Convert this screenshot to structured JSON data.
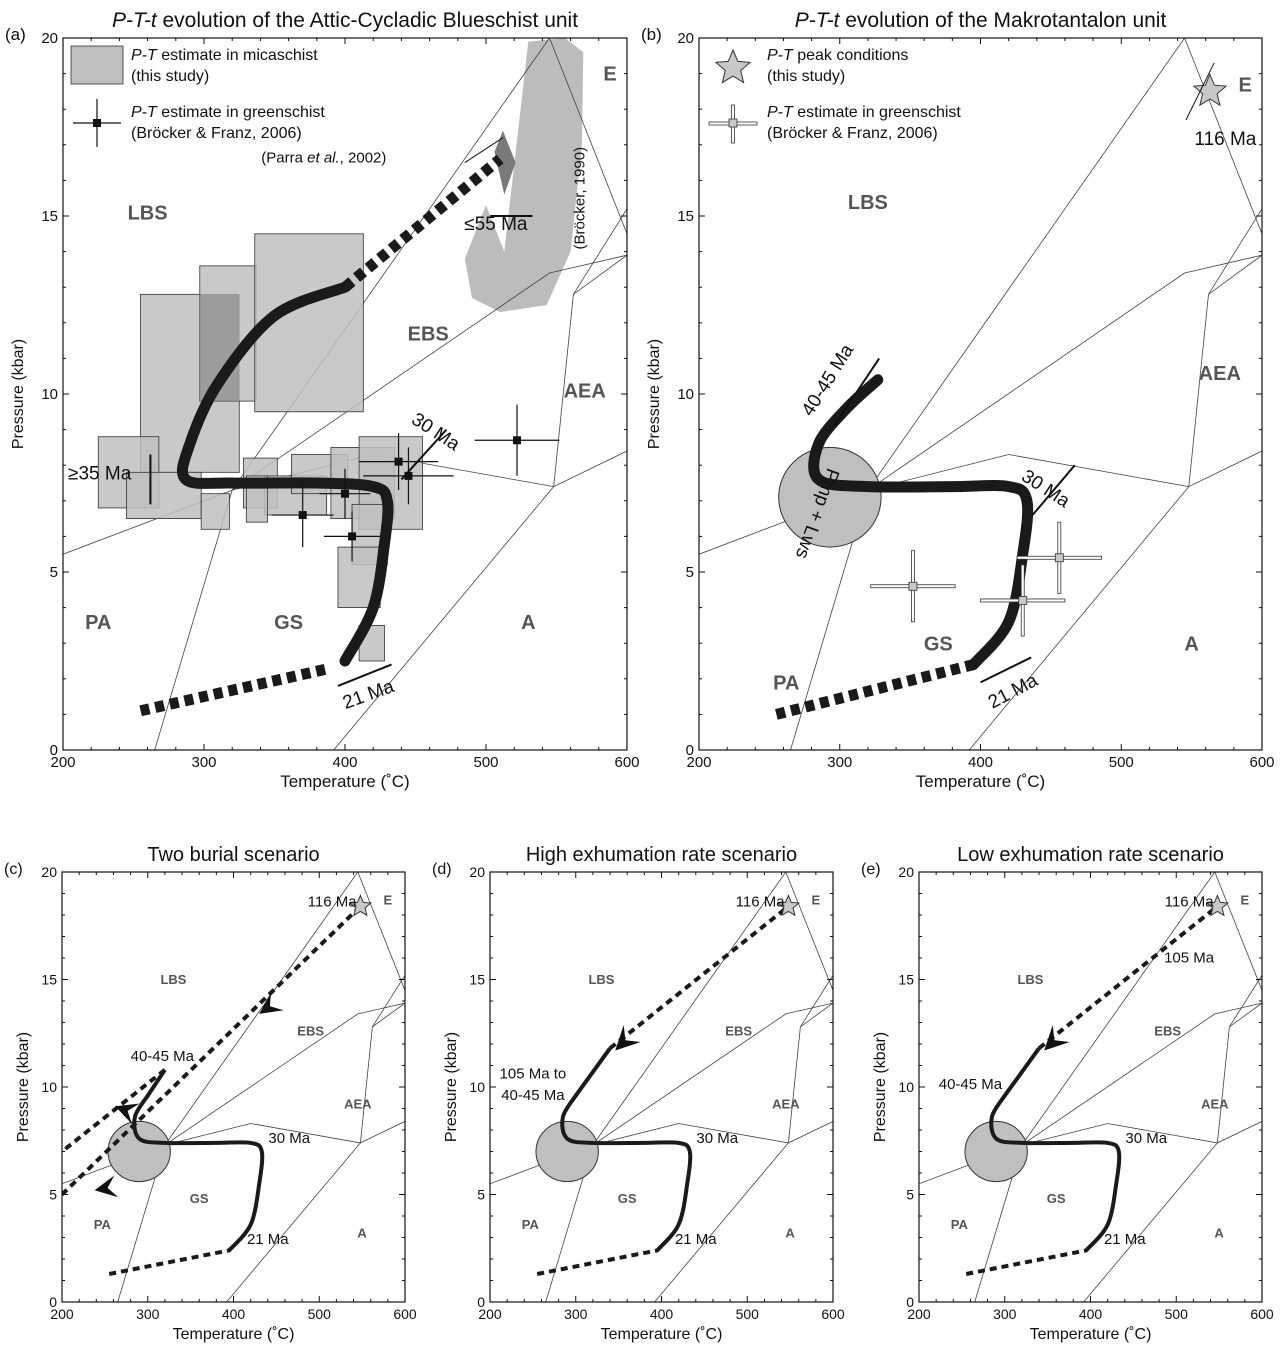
{
  "chart_data": [
    {
      "panel": "(a)",
      "type": "line",
      "title": "P-T-t evolution of the Attic-Cycladic Blueschist unit",
      "xlabel": "Temperature (˚C)",
      "ylabel": "Pressure (kbar)",
      "xlim": [
        200,
        600
      ],
      "ylim": [
        0,
        20
      ],
      "xticks": [
        "200",
        "300",
        "400",
        "500",
        "600"
      ],
      "yticks": [
        "0",
        "5",
        "10",
        "15",
        "20"
      ],
      "legend": [
        {
          "italic": "P-T",
          "text": " estimate in micaschist",
          "line2": "(this study)",
          "symbol": "grey-box"
        },
        {
          "italic": "P-T",
          "text": " estimate in greenschist",
          "line2": "(Bröcker & Franz, 2006)",
          "symbol": "black-square-cross"
        }
      ],
      "facies": [
        {
          "label": "LBS",
          "x": 260,
          "y": 14.9
        },
        {
          "label": "EBS",
          "x": 459,
          "y": 11.5
        },
        {
          "label": "AEA",
          "x": 570,
          "y": 9.9
        },
        {
          "label": "E",
          "x": 588,
          "y": 18.8
        },
        {
          "label": "PA",
          "x": 225,
          "y": 3.4
        },
        {
          "label": "GS",
          "x": 360,
          "y": 3.4
        },
        {
          "label": "A",
          "x": 530,
          "y": 3.4
        }
      ],
      "annotations": [
        {
          "text": "(Parra et al., 2002)",
          "x": 385,
          "y": 16.5
        },
        {
          "text": "≤55 Ma",
          "x": 507,
          "y": 14.6
        },
        {
          "text": "(Bröcker, 1990)",
          "x": 570,
          "y": 15.5,
          "rotate": -90
        },
        {
          "text": "≥35 Ma",
          "x": 226,
          "y": 7.6
        },
        {
          "text": "30 Ma",
          "x": 462,
          "y": 8.8,
          "rotate": 33
        },
        {
          "text": "21 Ma",
          "x": 418,
          "y": 1.4,
          "rotate": -20
        }
      ],
      "micaschist_boxes": [
        {
          "t": [
            255,
            325
          ],
          "p": [
            7.8,
            12.8
          ]
        },
        {
          "t": [
            297,
            337
          ],
          "p": [
            9.8,
            13.6
          ]
        },
        {
          "t": [
            336,
            413
          ],
          "p": [
            9.5,
            14.5
          ]
        },
        {
          "t": [
            225,
            268
          ],
          "p": [
            6.8,
            8.8
          ]
        },
        {
          "t": [
            245,
            298
          ],
          "p": [
            6.5,
            7.8
          ]
        },
        {
          "t": [
            298,
            318
          ],
          "p": [
            6.2,
            7.2
          ]
        },
        {
          "t": [
            328,
            352
          ],
          "p": [
            6.8,
            8.2
          ]
        },
        {
          "t": [
            343,
            387
          ],
          "p": [
            6.6,
            7.7
          ]
        },
        {
          "t": [
            362,
            402
          ],
          "p": [
            7.2,
            8.3
          ]
        },
        {
          "t": [
            390,
            435
          ],
          "p": [
            6.5,
            8.5
          ]
        },
        {
          "t": [
            410,
            455
          ],
          "p": [
            6.2,
            8.8
          ]
        },
        {
          "t": [
            405,
            430
          ],
          "p": [
            5.2,
            6.9
          ]
        },
        {
          "t": [
            395,
            425
          ],
          "p": [
            4.0,
            5.7
          ]
        },
        {
          "t": [
            410,
            428
          ],
          "p": [
            2.5,
            3.5
          ]
        },
        {
          "t": [
            330,
            345
          ],
          "p": [
            6.4,
            7.7
          ]
        }
      ],
      "greenschist_points": [
        {
          "t": 438,
          "p": 8.1,
          "dt": 28,
          "dp": 0.8
        },
        {
          "t": 445,
          "p": 7.7,
          "dt": 32,
          "dp": 0.8
        },
        {
          "t": 522,
          "p": 8.7,
          "dt": 30,
          "dp": 1.0
        },
        {
          "t": 370,
          "p": 6.6,
          "dt": 22,
          "dp": 0.9
        },
        {
          "t": 400,
          "p": 7.2,
          "dt": 18,
          "dp": 0.7
        },
        {
          "t": 405,
          "p": 6.0,
          "dt": 20,
          "dp": 0.7
        }
      ],
      "path_solid": [
        [
          400,
          2.5
        ],
        [
          420,
          4.0
        ],
        [
          428,
          5.8
        ],
        [
          430,
          7.0
        ],
        [
          420,
          7.4
        ],
        [
          380,
          7.5
        ],
        [
          320,
          7.5
        ],
        [
          287,
          7.6
        ],
        [
          290,
          8.6
        ],
        [
          310,
          10.3
        ],
        [
          350,
          12.2
        ],
        [
          400,
          13.0
        ]
      ],
      "path_dashed_high": [
        [
          400,
          13.0
        ],
        [
          510,
          16.6
        ]
      ],
      "path_dashed_low": [
        [
          255,
          1.1
        ],
        [
          390,
          2.3
        ]
      ],
      "bars": [
        {
          "from": [
            503,
            15.0
          ],
          "to": [
            533,
            15.0
          ]
        },
        {
          "from": [
            300,
            0
          ],
          "to": [
            0,
            0
          ],
          "skip": true
        }
      ]
    },
    {
      "panel": "(b)",
      "type": "line",
      "title": "P-T-t evolution of the Makrotantalon unit",
      "xlabel": "Temperature (˚C)",
      "ylabel": "Pressure (kbar)",
      "xlim": [
        200,
        600
      ],
      "ylim": [
        0,
        20
      ],
      "xticks": [
        "200",
        "300",
        "400",
        "500",
        "600"
      ],
      "yticks": [
        "0",
        "5",
        "10",
        "15",
        "20"
      ],
      "legend": [
        {
          "italic": "P-T",
          "text": " peak conditions",
          "line2": "(this study)",
          "symbol": "grey-star"
        },
        {
          "italic": "P-T",
          "text": " estimate in greenschist",
          "line2": "(Bröcker & Franz, 2006)",
          "symbol": "grey-square-cross"
        }
      ],
      "facies": [
        {
          "label": "LBS",
          "x": 320,
          "y": 15.2
        },
        {
          "label": "AEA",
          "x": 570,
          "y": 10.4
        },
        {
          "label": "E",
          "x": 588,
          "y": 18.5
        },
        {
          "label": "PA",
          "x": 262,
          "y": 1.7
        },
        {
          "label": "GS",
          "x": 370,
          "y": 2.8
        },
        {
          "label": "A",
          "x": 550,
          "y": 2.8
        }
      ],
      "annotations": [
        {
          "text": "116 Ma",
          "x": 574,
          "y": 17.0
        },
        {
          "text": "40-45 Ma",
          "x": 295,
          "y": 10.3,
          "rotate": -58
        },
        {
          "text": "30 Ma",
          "x": 444,
          "y": 7.2,
          "rotate": 33
        },
        {
          "text": "21 Ma",
          "x": 425,
          "y": 1.5,
          "rotate": -28
        },
        {
          "text": "Pmp + Lws",
          "x": 280,
          "y": 6.7,
          "rotate": 110
        }
      ],
      "peak_star": {
        "t": 563,
        "p": 18.5
      },
      "greenschist_points": [
        {
          "t": 352,
          "p": 4.6,
          "dt": 30,
          "dp": 1.0
        },
        {
          "t": 456,
          "p": 5.4,
          "dt": 30,
          "dp": 1.0
        },
        {
          "t": 430,
          "p": 4.2,
          "dt": 30,
          "dp": 1.0
        }
      ],
      "circle": {
        "t": 293,
        "p": 7.1,
        "r": 1.4
      },
      "path_solid": [
        [
          395,
          2.4
        ],
        [
          420,
          3.6
        ],
        [
          430,
          5.5
        ],
        [
          433,
          7.0
        ],
        [
          420,
          7.4
        ],
        [
          380,
          7.4
        ],
        [
          320,
          7.4
        ],
        [
          285,
          7.6
        ],
        [
          285,
          8.6
        ],
        [
          305,
          9.6
        ],
        [
          327,
          10.4
        ]
      ],
      "path_dashed_low": [
        [
          255,
          1.0
        ],
        [
          395,
          2.4
        ]
      ]
    },
    {
      "panel": "(c)",
      "type": "line",
      "title": "Two burial scenario",
      "xlabel": "Temperature (˚C)",
      "ylabel": "Pressure (kbar)",
      "xlim": [
        200,
        600
      ],
      "ylim": [
        0,
        20
      ],
      "xticks": [
        "200",
        "300",
        "400",
        "500",
        "600"
      ],
      "yticks": [
        "0",
        "5",
        "10",
        "15",
        "20"
      ],
      "facies": [
        {
          "label": "LBS",
          "x": 330,
          "y": 14.8
        },
        {
          "label": "EBS",
          "x": 490,
          "y": 12.4
        },
        {
          "label": "AEA",
          "x": 545,
          "y": 9.0
        },
        {
          "label": "E",
          "x": 580,
          "y": 18.5
        },
        {
          "label": "PA",
          "x": 247,
          "y": 3.4
        },
        {
          "label": "GS",
          "x": 360,
          "y": 4.6
        },
        {
          "label": "A",
          "x": 550,
          "y": 3.0
        }
      ],
      "annotations": [
        {
          "text": "116 Ma",
          "x": 515,
          "y": 18.4
        },
        {
          "text": "40-45 Ma",
          "x": 317,
          "y": 11.2
        },
        {
          "text": "30 Ma",
          "x": 465,
          "y": 7.4
        },
        {
          "text": "21 Ma",
          "x": 440,
          "y": 2.7
        }
      ]
    },
    {
      "panel": "(d)",
      "type": "line",
      "title": "High exhumation rate scenario",
      "xlabel": "Temperature (˚C)",
      "ylabel": "Pressure (kbar)",
      "xlim": [
        200,
        600
      ],
      "ylim": [
        0,
        20
      ],
      "xticks": [
        "200",
        "300",
        "400",
        "500",
        "600"
      ],
      "yticks": [
        "0",
        "5",
        "10",
        "15",
        "20"
      ],
      "facies": [
        {
          "label": "LBS",
          "x": 330,
          "y": 14.8
        },
        {
          "label": "EBS",
          "x": 490,
          "y": 12.4
        },
        {
          "label": "AEA",
          "x": 545,
          "y": 9.0
        },
        {
          "label": "E",
          "x": 580,
          "y": 18.5
        },
        {
          "label": "PA",
          "x": 247,
          "y": 3.4
        },
        {
          "label": "GS",
          "x": 360,
          "y": 4.6
        },
        {
          "label": "A",
          "x": 550,
          "y": 3.0
        }
      ],
      "annotations": [
        {
          "text": "116 Ma",
          "x": 515,
          "y": 18.4
        },
        {
          "text": "105 Ma to",
          "x": 250,
          "y": 10.4
        },
        {
          "text": "40-45 Ma",
          "x": 250,
          "y": 9.4
        },
        {
          "text": "30 Ma",
          "x": 465,
          "y": 7.4
        },
        {
          "text": "21 Ma",
          "x": 440,
          "y": 2.7
        }
      ]
    },
    {
      "panel": "(e)",
      "type": "line",
      "title": "Low exhumation rate scenario",
      "xlabel": "Temperature (˚C)",
      "ylabel": "Pressure (kbar)",
      "xlim": [
        200,
        600
      ],
      "ylim": [
        0,
        20
      ],
      "xticks": [
        "200",
        "300",
        "400",
        "500",
        "600"
      ],
      "yticks": [
        "0",
        "5",
        "10",
        "15",
        "20"
      ],
      "facies": [
        {
          "label": "LBS",
          "x": 330,
          "y": 14.8
        },
        {
          "label": "EBS",
          "x": 490,
          "y": 12.4
        },
        {
          "label": "AEA",
          "x": 545,
          "y": 9.0
        },
        {
          "label": "E",
          "x": 580,
          "y": 18.5
        },
        {
          "label": "PA",
          "x": 247,
          "y": 3.4
        },
        {
          "label": "GS",
          "x": 360,
          "y": 4.6
        },
        {
          "label": "A",
          "x": 550,
          "y": 3.0
        }
      ],
      "annotations": [
        {
          "text": "116 Ma",
          "x": 515,
          "y": 18.4
        },
        {
          "text": "105 Ma",
          "x": 515,
          "y": 15.8
        },
        {
          "text": "40-45 Ma",
          "x": 260,
          "y": 9.9
        },
        {
          "text": "30 Ma",
          "x": 465,
          "y": 7.4
        },
        {
          "text": "21 Ma",
          "x": 440,
          "y": 2.7
        }
      ]
    }
  ],
  "colors": {
    "box_fill": "#bfbfbf",
    "box_overlap": "#8c8c8c",
    "broecker_field": "#bcbcbc",
    "parra_field": "#7a7a7a",
    "path": "#1a1a1a",
    "facies_label": "#555555",
    "star_fill": "#c8c8c8"
  }
}
